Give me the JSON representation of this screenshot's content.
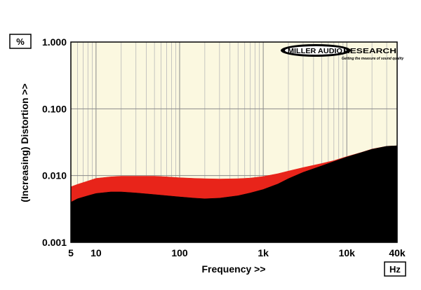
{
  "chart_data": {
    "type": "area",
    "title": "",
    "xlabel": "Frequency >>",
    "ylabel": "(Increasing) Distortion >>",
    "x_unit": "Hz",
    "y_unit": "%",
    "x_scale": "log",
    "y_scale": "log",
    "xlim": [
      5,
      40000
    ],
    "ylim": [
      0.001,
      1.0
    ],
    "x_ticks": [
      {
        "value": 5,
        "label": "5"
      },
      {
        "value": 10,
        "label": "10"
      },
      {
        "value": 100,
        "label": "100"
      },
      {
        "value": 1000,
        "label": "1k"
      },
      {
        "value": 10000,
        "label": "10k"
      },
      {
        "value": 40000,
        "label": "40k"
      }
    ],
    "y_ticks": [
      {
        "value": 0.001,
        "label": "0.001"
      },
      {
        "value": 0.01,
        "label": "0.010"
      },
      {
        "value": 0.1,
        "label": "0.100"
      },
      {
        "value": 1.0,
        "label": "1.000"
      }
    ],
    "grid": true,
    "background_color": "#fbf8e0",
    "series": [
      {
        "color": "#e8241a",
        "x": [
          5,
          6,
          8,
          10,
          15,
          20,
          30,
          50,
          70,
          100,
          150,
          200,
          300,
          500,
          700,
          1000,
          1500,
          2000,
          3000,
          5000,
          7000,
          10000,
          15000,
          20000,
          30000,
          40000
        ],
        "y": [
          0.0068,
          0.0074,
          0.0083,
          0.0091,
          0.0096,
          0.0098,
          0.0098,
          0.0098,
          0.0096,
          0.0093,
          0.0091,
          0.009,
          0.0089,
          0.009,
          0.0092,
          0.0097,
          0.0107,
          0.0117,
          0.0132,
          0.0152,
          0.0168,
          0.0193,
          0.0223,
          0.025,
          0.0275,
          0.028
        ]
      },
      {
        "color": "#000000",
        "x": [
          5,
          6,
          8,
          10,
          15,
          20,
          30,
          50,
          70,
          100,
          150,
          200,
          300,
          500,
          700,
          1000,
          1500,
          2000,
          3000,
          5000,
          7000,
          10000,
          15000,
          20000,
          30000,
          40000
        ],
        "y": [
          0.004,
          0.0045,
          0.005,
          0.0054,
          0.0057,
          0.0057,
          0.0055,
          0.0052,
          0.005,
          0.0048,
          0.0046,
          0.0045,
          0.0046,
          0.005,
          0.0055,
          0.0062,
          0.0075,
          0.009,
          0.0112,
          0.014,
          0.0163,
          0.019,
          0.0222,
          0.0248,
          0.0275,
          0.028
        ]
      }
    ]
  },
  "logo": {
    "name": "MILLER AUDIO RESEARCH",
    "tagline": "Getting the measure of sound quality"
  }
}
